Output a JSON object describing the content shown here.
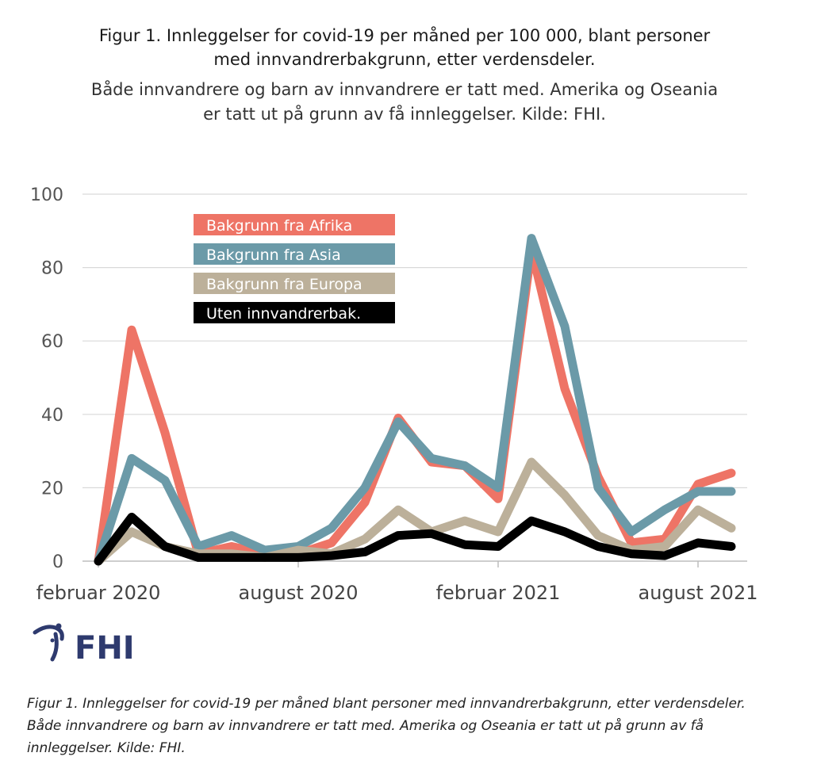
{
  "header": {
    "title_line1": "Figur 1. Innleggelser for covid-19 per måned per 100 000, blant personer",
    "title_line2": "med innvandrerbakgrunn, etter verdensdeler.",
    "subtitle_line1": "Både innvandrere og barn av innvandrere er tatt med. Amerika og Oseania",
    "subtitle_line2": "er tatt ut på grunn av få innleggelser. Kilde: FHI."
  },
  "logo": {
    "text": "FHI"
  },
  "caption": {
    "line1": "Figur 1. Innleggelser for covid-19 per måned blant personer med innvandrerbakgrunn, etter verdensdeler.",
    "line2": "Både innvandrere og barn av innvandrere er tatt med. Amerika og Oseania er tatt ut på grunn av få",
    "line3": "innleggelser. Kilde: FHI."
  },
  "chart_data": {
    "type": "line",
    "ylim": [
      0,
      100
    ],
    "y_ticks": [
      "0",
      "20",
      "40",
      "60",
      "80",
      "100"
    ],
    "x_tick_labels": [
      {
        "label": "februar 2020",
        "index": 0
      },
      {
        "label": "august 2020",
        "index": 6
      },
      {
        "label": "februar 2021",
        "index": 12
      },
      {
        "label": "august 2021",
        "index": 18
      }
    ],
    "grid": true,
    "legend_position": "top-left",
    "x": [
      "2020-02",
      "2020-03",
      "2020-04",
      "2020-05",
      "2020-06",
      "2020-07",
      "2020-08",
      "2020-09",
      "2020-10",
      "2020-11",
      "2020-12",
      "2021-01",
      "2021-02",
      "2021-03",
      "2021-04",
      "2021-05",
      "2021-06",
      "2021-07",
      "2021-08",
      "2021-09"
    ],
    "series": [
      {
        "name": "Bakgrunn fra Afrika",
        "color": "#ee7466",
        "text_color": "#ffffff",
        "values": [
          0,
          63,
          35,
          2,
          4,
          2,
          2,
          5,
          16,
          39,
          27,
          26,
          17,
          85,
          47,
          23,
          5,
          6,
          21,
          24
        ]
      },
      {
        "name": "Bakgrunn fra Asia",
        "color": "#6b9aa8",
        "text_color": "#ffffff",
        "values": [
          0,
          28,
          22,
          4,
          7,
          3,
          4,
          9,
          20,
          38,
          28,
          26,
          20,
          88,
          64,
          20,
          8,
          14,
          19,
          19
        ]
      },
      {
        "name": "Bakgrunn fra Europa",
        "color": "#bcb09a",
        "text_color": "#ffffff",
        "values": [
          0,
          8,
          4,
          2,
          2,
          1,
          3,
          2,
          6,
          14,
          8,
          11,
          8,
          27,
          18,
          7,
          3,
          4,
          14,
          9
        ]
      },
      {
        "name": "Uten innvandrerbak.",
        "color": "#000000",
        "text_color": "#ffffff",
        "values": [
          0,
          12,
          4,
          1,
          1,
          1,
          1,
          1.5,
          2.5,
          7,
          7.5,
          4.5,
          4,
          11,
          8,
          4,
          2,
          1.5,
          5,
          4
        ]
      }
    ]
  }
}
